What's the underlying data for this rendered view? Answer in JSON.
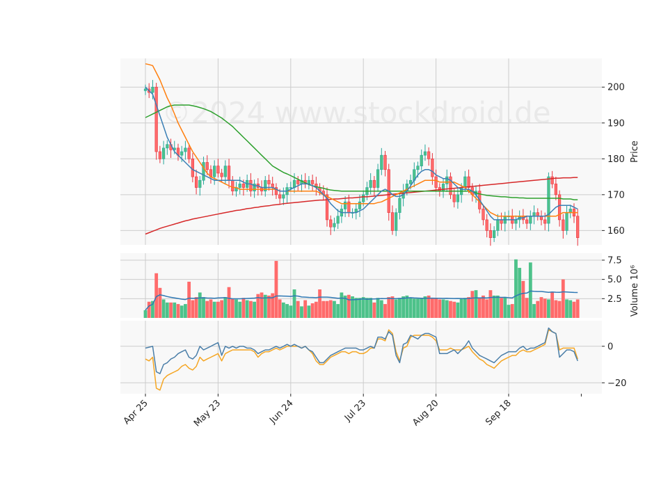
{
  "chart_data": {
    "type": "candlestick",
    "watermark": "©2024 www.stockdroid.de",
    "x_tick_labels": [
      "Apr 25",
      "May 23",
      "Jun 24",
      "Jul 23",
      "Aug 20",
      "Sep 18"
    ],
    "x_tick_bar_index": [
      0,
      20,
      40,
      60,
      80,
      100
    ],
    "bar_count": 120,
    "grid": true,
    "price_panel": {
      "ylabel": "Price",
      "ylim": [
        156,
        208
      ],
      "yticks": [
        160,
        170,
        180,
        190,
        200
      ],
      "close": [
        199.5,
        198.5,
        200,
        182,
        180,
        183,
        184,
        182.5,
        183,
        181,
        182,
        183,
        180,
        175,
        172,
        174,
        179,
        177,
        175,
        178,
        176,
        175,
        178,
        174,
        171,
        172,
        173,
        172,
        174,
        171,
        173,
        172,
        171,
        174,
        173,
        172,
        170,
        169,
        170,
        172,
        172,
        174,
        173,
        174,
        173,
        174,
        173,
        172,
        171,
        170,
        163,
        161,
        162,
        164,
        166,
        168,
        165,
        165,
        166,
        168,
        170,
        172,
        174,
        172,
        177,
        181,
        177,
        165,
        160,
        165,
        169,
        171,
        173,
        174,
        177,
        178,
        181,
        182,
        180,
        175,
        172,
        171,
        173,
        175,
        170,
        168,
        170,
        172,
        175,
        172,
        170,
        171,
        166,
        163,
        160,
        158,
        160,
        163,
        162,
        164,
        164,
        162,
        163,
        164,
        163,
        162,
        164,
        165,
        164,
        163,
        162,
        175,
        173,
        170,
        163,
        160,
        165,
        166,
        164,
        158
      ],
      "volume": [
        1.0,
        2.1,
        2.2,
        5.8,
        3.9,
        2.4,
        2.0,
        2.0,
        2.0,
        1.8,
        1.6,
        1.8,
        4.7,
        2.3,
        2.7,
        3.3,
        2.7,
        2.2,
        2.4,
        2.1,
        2.1,
        2.3,
        2.7,
        4.0,
        2.5,
        2.4,
        2.1,
        2.6,
        2.3,
        2.2,
        2.1,
        3.1,
        3.3,
        3.0,
        2.9,
        3.2,
        7.4,
        2.4,
        2.0,
        1.8,
        1.6,
        3.7,
        2.2,
        1.5,
        2.3,
        1.6,
        1.9,
        2.1,
        3.7,
        2.2,
        2.2,
        2.3,
        2.2,
        1.8,
        3.3,
        2.9,
        3.0,
        2.8,
        2.6,
        2.6,
        2.7,
        2.6,
        2.6,
        2.0,
        2.6,
        2.3,
        1.8,
        2.7,
        2.8,
        2.4,
        2.6,
        2.8,
        2.9,
        2.6,
        2.5,
        2.5,
        2.6,
        2.8,
        2.9,
        2.6,
        2.5,
        2.4,
        2.4,
        2.3,
        2.2,
        2.1,
        2.0,
        2.5,
        2.6,
        2.7,
        3.5,
        3.6,
        2.6,
        2.9,
        2.4,
        3.6,
        2.9,
        2.9,
        2.6,
        2.7,
        1.7,
        1.8,
        7.6,
        6.5,
        4.8,
        2.6,
        7.2,
        1.8,
        2.2,
        2.7,
        2.5,
        2.4,
        3.4,
        2.3,
        2.2,
        5.0,
        2.4,
        2.3,
        2.1,
        2.4
      ],
      "sma_blue": [
        200,
        199,
        198,
        195,
        192,
        189,
        186,
        184,
        182,
        181,
        180,
        179,
        178,
        177,
        176.5,
        176,
        175.5,
        175,
        174.5,
        174,
        174,
        174,
        174,
        174,
        174,
        174,
        174,
        173.5,
        173,
        173,
        172.5,
        172.5,
        172,
        172,
        172,
        172,
        171.5,
        171,
        171,
        171,
        171.5,
        172,
        172.5,
        173,
        173,
        173,
        172.5,
        172,
        171,
        170,
        169,
        167.5,
        166.5,
        165.5,
        165,
        165,
        165,
        165,
        165,
        165.5,
        166,
        167,
        168,
        169,
        170,
        171,
        171.5,
        171,
        170,
        169.5,
        169.5,
        170,
        171,
        172.5,
        174,
        175.5,
        176.5,
        177,
        177,
        176.5,
        175.5,
        175,
        174.5,
        174.5,
        174,
        173,
        172,
        171.5,
        171.5,
        171.5,
        171,
        170,
        168.5,
        167,
        165.5,
        164,
        163,
        163,
        163,
        163,
        163,
        163,
        163,
        163.5,
        163.5,
        164,
        164,
        164,
        164,
        164,
        164,
        164.5,
        165.5,
        166.5,
        167,
        167,
        167,
        167,
        166.5,
        166
      ],
      "sma_orange": [
        206.5,
        206.3,
        206,
        204,
        202,
        199.5,
        197,
        195,
        192.5,
        190,
        188,
        186,
        184,
        182,
        180.5,
        179,
        177.5,
        176,
        175,
        174.5,
        174,
        173.5,
        173,
        172.5,
        172,
        172,
        171.5,
        171.5,
        171.5,
        171.5,
        171.5,
        171.5,
        171.5,
        171.5,
        171.5,
        171.5,
        171.5,
        171,
        171,
        171,
        171,
        171,
        171,
        171,
        171,
        171,
        171,
        171,
        170.5,
        170,
        169.5,
        169,
        168.5,
        168,
        167.5,
        167.5,
        167.5,
        167.5,
        167.5,
        167.5,
        167.5,
        167.5,
        167.5,
        167.5,
        167.8,
        168,
        168.5,
        169,
        169.5,
        170,
        170.5,
        171,
        171.5,
        172,
        172.5,
        173,
        173.5,
        174,
        174,
        174,
        174,
        173.5,
        173.5,
        173.5,
        173.5,
        173.5,
        173,
        172.5,
        172,
        171,
        170,
        169,
        168,
        167,
        166,
        165,
        164.5,
        164,
        164,
        164,
        164,
        164,
        164,
        164,
        164,
        164,
        164,
        164,
        164,
        164,
        164,
        164,
        164,
        164,
        164.5,
        165,
        165,
        165,
        165,
        165
      ],
      "sma_green": [
        191.5,
        192,
        192.5,
        193,
        193.5,
        194,
        194.5,
        194.8,
        195,
        195,
        195,
        195,
        195,
        194.8,
        194.6,
        194.3,
        194,
        193.6,
        193.2,
        192.6,
        192,
        191.4,
        190.6,
        189.8,
        189,
        188,
        187,
        186,
        185,
        184,
        183,
        182,
        181,
        180,
        179,
        178,
        177.4,
        176.8,
        176.2,
        175.8,
        175.3,
        174.8,
        174.3,
        173.8,
        173.3,
        172.8,
        172.5,
        172.2,
        172,
        171.8,
        171.5,
        171.3,
        171.2,
        171.1,
        171,
        171,
        171,
        171,
        171,
        171,
        171,
        171,
        171,
        171,
        171,
        171,
        171,
        171,
        171,
        171,
        171,
        171,
        171,
        171,
        171,
        171,
        171,
        171,
        171,
        171,
        171,
        171,
        171,
        171,
        171,
        171,
        171,
        171,
        171,
        171,
        171,
        170.5,
        170.2,
        170,
        169.8,
        169.7,
        169.6,
        169.5,
        169.4,
        169.4,
        169.3,
        169.2,
        169.2,
        169.1,
        169.1,
        169,
        169,
        169,
        169,
        169,
        169,
        169,
        169,
        169,
        169,
        168.8,
        168.8,
        168.8,
        168.6,
        168.6
      ],
      "sma_red": [
        159,
        159.4,
        159.8,
        160.2,
        160.6,
        160.9,
        161.2,
        161.5,
        161.8,
        162.1,
        162.4,
        162.7,
        162.9,
        163.2,
        163.4,
        163.6,
        163.8,
        164,
        164.2,
        164.4,
        164.6,
        164.8,
        165,
        165.2,
        165.4,
        165.6,
        165.7,
        165.9,
        166.1,
        166.2,
        166.4,
        166.5,
        166.7,
        166.8,
        166.9,
        167.1,
        167.2,
        167.3,
        167.5,
        167.6,
        167.7,
        167.8,
        167.9,
        168,
        168.1,
        168.2,
        168.3,
        168.4,
        168.5,
        168.5,
        168.6,
        168.7,
        168.8,
        168.8,
        168.9,
        169,
        169.1,
        169.1,
        169.2,
        169.3,
        169.4,
        169.4,
        169.5,
        169.6,
        169.7,
        169.8,
        169.9,
        170,
        170.1,
        170.2,
        170.3,
        170.4,
        170.5,
        170.6,
        170.7,
        170.8,
        170.9,
        171,
        171.1,
        171.2,
        171.3,
        171.4,
        171.5,
        171.6,
        171.7,
        171.8,
        171.9,
        172,
        172.1,
        172.2,
        172.3,
        172.4,
        172.5,
        172.6,
        172.7,
        172.8,
        172.9,
        173,
        173.1,
        173.2,
        173.3,
        173.4,
        173.5,
        173.6,
        173.7,
        173.8,
        173.9,
        174,
        174.1,
        174.2,
        174.3,
        174.4,
        174.5,
        174.6,
        174.6,
        174.7,
        174.7,
        174.7,
        174.8,
        174.8
      ]
    },
    "volume_panel": {
      "ylabel": "Volume  10⁶",
      "ylim": [
        0,
        8.4
      ],
      "yticks": [
        2.5,
        5.0,
        7.5
      ],
      "ytick_labels": [
        "2.5",
        "5.0",
        "7.5"
      ]
    },
    "indicator_panel": {
      "ylim": [
        -26,
        14
      ],
      "yticks": [
        -20,
        0
      ],
      "ytick_labels": [
        "−20",
        "0"
      ],
      "line_blue": [
        -1,
        -0.5,
        0,
        -14,
        -15,
        -10,
        -9,
        -7,
        -6,
        -4,
        -3,
        -2,
        -6,
        -7,
        -5,
        0,
        -2,
        -1,
        0,
        1,
        2,
        -5,
        0,
        -1,
        0,
        -1,
        0,
        0,
        -1,
        -1,
        -2,
        -4,
        -3,
        -2,
        -2,
        -1,
        0,
        -1,
        0,
        1,
        0,
        1,
        0,
        -1,
        0,
        -2,
        -3,
        -6,
        -9,
        -9,
        -7,
        -5,
        -4,
        -3,
        -2,
        -1,
        -1,
        -1,
        -1,
        -2,
        -2,
        -1,
        0,
        -1,
        5,
        5,
        4,
        8,
        6,
        -5,
        -9,
        1,
        2,
        6,
        5,
        4,
        6,
        7,
        7,
        6,
        5,
        -4,
        -4,
        -4,
        -3,
        -2,
        -4,
        -2,
        0,
        3,
        -1,
        -3,
        -5,
        -6,
        -7,
        -8,
        -9,
        -7,
        -5,
        -4,
        -3,
        -3,
        -3,
        -1,
        0,
        -2,
        -1,
        -1,
        0,
        1,
        2,
        10,
        8,
        7,
        -6,
        -4,
        -2,
        -2,
        -3,
        -8
      ],
      "line_orange": [
        -7,
        -8,
        -6,
        -23,
        -24,
        -18,
        -16,
        -15,
        -14,
        -13,
        -11,
        -10,
        -12,
        -13,
        -11,
        -6,
        -8,
        -7,
        -6,
        -5,
        -4,
        -8,
        -4,
        -3,
        -2,
        -2,
        -2,
        -2,
        -2,
        -2,
        -3,
        -6,
        -4,
        -3,
        -3,
        -2,
        -1,
        -2,
        -1,
        0,
        0,
        0,
        0,
        -1,
        0,
        -2,
        -4,
        -8,
        -10,
        -10,
        -8,
        -6,
        -5,
        -4,
        -3,
        -3,
        -4,
        -3,
        -3,
        -4,
        -4,
        -3,
        -1,
        -1,
        4,
        4,
        3,
        9,
        7,
        -3,
        -8,
        -1,
        0,
        5,
        6,
        6,
        6,
        6,
        6,
        5,
        3,
        -2,
        -2,
        -2,
        -1,
        -2,
        -2,
        -2,
        -1,
        0,
        -3,
        -5,
        -7,
        -8,
        -10,
        -11,
        -12,
        -10,
        -8,
        -7,
        -6,
        -5,
        -5,
        -3,
        -2,
        -3,
        -3,
        -2,
        -1,
        0,
        1,
        9,
        8,
        7,
        -2,
        -1,
        -1,
        -1,
        -1,
        -7
      ]
    },
    "colors": {
      "up": "#26a69a",
      "up_fill": "#4dc28a",
      "down": "#e8323c",
      "down_fill": "#ff6b6b",
      "sma_blue": "#3a7fb5",
      "sma_orange": "#ff7f0e",
      "sma_green": "#2ca02c",
      "sma_red": "#d62728",
      "vol_ma": "#2e78b4",
      "ind_blue": "#4a7ea8",
      "ind_orange": "#f5a623",
      "panel_bg": "#f8f8f8",
      "grid": "#cccccc"
    }
  }
}
